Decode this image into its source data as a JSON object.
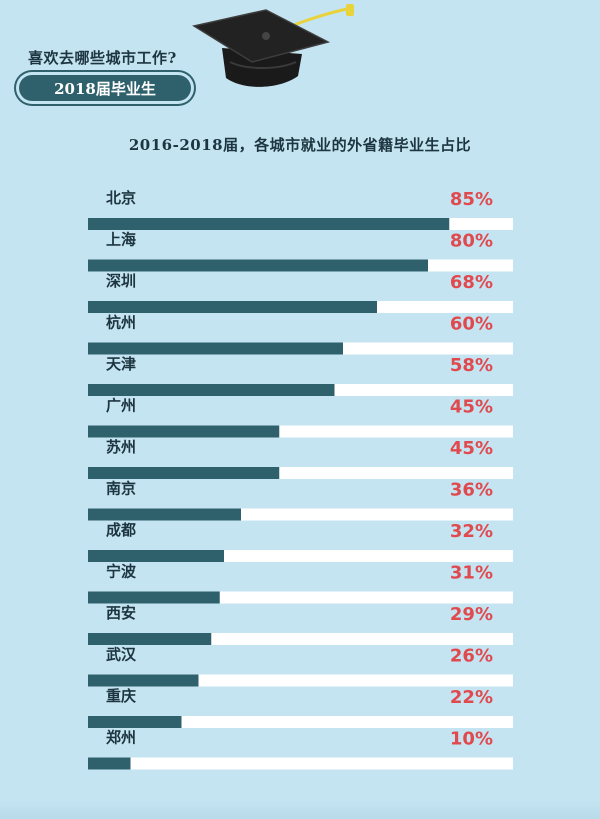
{
  "header": {
    "question": "喜欢去哪些城市工作?",
    "badge": "2018届毕业生"
  },
  "colors": {
    "background": "#c4e4f1",
    "bar": "#2f616d",
    "track": "#ffffff",
    "percent_text": "#e04a4f",
    "text": "#1d3540",
    "cap": "#1a1a1a",
    "tassel": "#e8d33c"
  },
  "icons": [
    "graduation-cap-icon"
  ],
  "chart_data": {
    "type": "bar",
    "orientation": "horizontal",
    "title": "2016-2018届，各城市就业的外省籍毕业生占比",
    "categories": [
      "北京",
      "上海",
      "深圳",
      "杭州",
      "天津",
      "广州",
      "苏州",
      "南京",
      "成都",
      "宁波",
      "西安",
      "武汉",
      "重庆",
      "郑州"
    ],
    "values": [
      85,
      80,
      68,
      60,
      58,
      45,
      45,
      36,
      32,
      31,
      29,
      26,
      22,
      10
    ],
    "value_labels": [
      "85%",
      "80%",
      "68%",
      "60%",
      "58%",
      "45%",
      "45%",
      "36%",
      "32%",
      "31%",
      "29%",
      "26%",
      "22%",
      "10%"
    ],
    "xlim": [
      0,
      100
    ],
    "xlabel": "",
    "ylabel": "",
    "grid": false,
    "legend": "none"
  }
}
